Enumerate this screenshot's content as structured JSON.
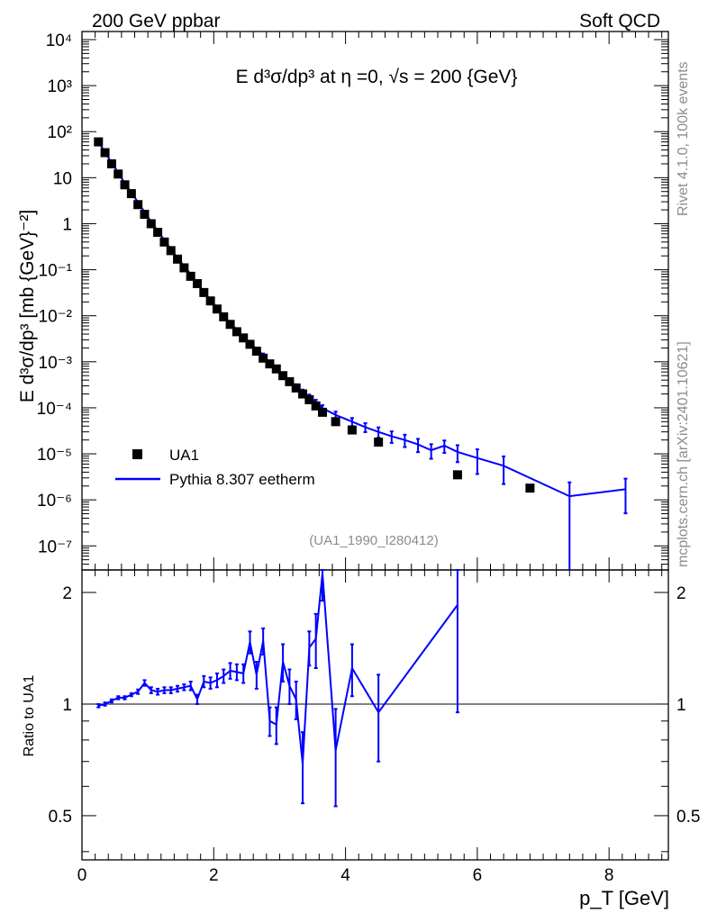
{
  "header": {
    "left": "200 GeV ppbar",
    "right": "Soft QCD"
  },
  "side": {
    "top": "Rivet 4.1.0,  100k events",
    "bottom": "mcplots.cern.ch [arXiv:2401.10621]"
  },
  "chart_data": {
    "type": "scatter",
    "title": "E d³σ/dp³ at η =0, √s = 200 {GeV}",
    "analysis_tag": "(UA1_1990_I280412)",
    "xlabel": "p_T [GeV]",
    "ylabel": "E d³σ/dp³ [mb {GeV}⁻²]",
    "ratio_ylabel": "Ratio to UA1",
    "xlim": [
      0,
      8.9
    ],
    "ylim_log": [
      3e-08,
      15000.0
    ],
    "ratio_ylim_log": [
      0.38,
      2.3
    ],
    "x_ticks": [
      "0",
      "2",
      "4",
      "6",
      "8"
    ],
    "y_ticks": [
      "10⁻⁷",
      "10⁻⁶",
      "10⁻⁵",
      "10⁻⁴",
      "10⁻³",
      "10⁻²",
      "10⁻¹",
      "1",
      "10",
      "10²",
      "10³",
      "10⁴"
    ],
    "ratio_ticks": [
      "0.5",
      "1",
      "2"
    ],
    "legend": [
      {
        "label": "UA1",
        "marker": "square",
        "color": "#000000"
      },
      {
        "label": "Pythia 8.307 eetherm",
        "marker": "line",
        "color": "#0000ff"
      }
    ],
    "data_series": {
      "name": "UA1",
      "x": [
        0.25,
        0.35,
        0.45,
        0.55,
        0.65,
        0.75,
        0.85,
        0.95,
        1.05,
        1.15,
        1.25,
        1.35,
        1.45,
        1.55,
        1.65,
        1.75,
        1.85,
        1.95,
        2.05,
        2.15,
        2.25,
        2.35,
        2.45,
        2.55,
        2.65,
        2.75,
        2.85,
        2.95,
        3.05,
        3.15,
        3.25,
        3.35,
        3.45,
        3.55,
        3.65,
        3.85,
        4.1,
        4.5,
        5.7,
        6.8
      ],
      "y": [
        60,
        35,
        20,
        12,
        7,
        4.5,
        2.6,
        1.6,
        1.0,
        0.65,
        0.4,
        0.26,
        0.17,
        0.11,
        0.072,
        0.05,
        0.032,
        0.021,
        0.014,
        0.0095,
        0.0065,
        0.0045,
        0.0033,
        0.0024,
        0.0017,
        0.0012,
        0.0009,
        0.0007,
        0.0005,
        0.00037,
        0.00027,
        0.0002,
        0.00015,
        0.00011,
        8e-05,
        5e-05,
        3.3e-05,
        1.8e-05,
        3.5e-06,
        1.8e-06
      ]
    },
    "mc_series": {
      "name": "Pythia 8.307 eetherm",
      "x": [
        0.25,
        0.35,
        0.45,
        0.55,
        0.65,
        0.75,
        0.85,
        0.95,
        1.05,
        1.15,
        1.25,
        1.35,
        1.45,
        1.55,
        1.65,
        1.75,
        1.85,
        1.95,
        2.05,
        2.15,
        2.25,
        2.35,
        2.45,
        2.55,
        2.65,
        2.75,
        2.85,
        2.95,
        3.05,
        3.15,
        3.25,
        3.35,
        3.45,
        3.55,
        3.65,
        3.85,
        4.1,
        4.3,
        4.5,
        4.7,
        4.9,
        5.1,
        5.3,
        5.5,
        5.7,
        6.0,
        6.4,
        7.4,
        8.25
      ],
      "y": [
        60,
        36,
        21,
        13,
        7.5,
        4.8,
        2.9,
        1.8,
        1.1,
        0.7,
        0.44,
        0.28,
        0.18,
        0.12,
        0.08,
        0.05,
        0.034,
        0.022,
        0.015,
        0.01,
        0.007,
        0.005,
        0.0034,
        0.0026,
        0.0019,
        0.0014,
        0.00095,
        0.0007,
        0.00051,
        0.00038,
        0.00029,
        0.00022,
        0.00017,
        0.00013,
        9.8e-05,
        7e-05,
        5e-05,
        3.8e-05,
        3e-05,
        2.4e-05,
        2e-05,
        1.6e-05,
        1.2e-05,
        1.5e-05,
        1.1e-05,
        8.1e-06,
        5.5e-06,
        1.2e-06,
        1.7e-06
      ],
      "errors": [
        0.02,
        0.02,
        0.02,
        0.02,
        0.02,
        0.02,
        0.02,
        0.02,
        0.02,
        0.02,
        0.02,
        0.02,
        0.02,
        0.02,
        0.02,
        0.02,
        0.03,
        0.03,
        0.03,
        0.04,
        0.04,
        0.05,
        0.05,
        0.06,
        0.07,
        0.08,
        0.09,
        0.1,
        0.1,
        0.11,
        0.12,
        0.13,
        0.14,
        0.15,
        0.16,
        0.18,
        0.2,
        0.22,
        0.25,
        0.28,
        0.3,
        0.32,
        0.35,
        0.3,
        0.4,
        0.55,
        0.6,
        1.0,
        0.7
      ]
    },
    "ratio": {
      "x": [
        0.25,
        0.35,
        0.45,
        0.55,
        0.65,
        0.75,
        0.85,
        0.95,
        1.05,
        1.15,
        1.25,
        1.35,
        1.45,
        1.55,
        1.65,
        1.75,
        1.85,
        1.95,
        2.05,
        2.15,
        2.25,
        2.35,
        2.45,
        2.55,
        2.65,
        2.75,
        2.85,
        2.95,
        3.05,
        3.15,
        3.25,
        3.35,
        3.45,
        3.55,
        3.65,
        3.85,
        4.1,
        4.5,
        5.7
      ],
      "y": [
        0.99,
        1.0,
        1.02,
        1.04,
        1.04,
        1.06,
        1.08,
        1.14,
        1.09,
        1.08,
        1.09,
        1.09,
        1.1,
        1.11,
        1.12,
        1.03,
        1.15,
        1.14,
        1.16,
        1.19,
        1.23,
        1.22,
        1.21,
        1.47,
        1.2,
        1.48,
        0.9,
        0.88,
        1.3,
        1.12,
        1.03,
        0.69,
        1.42,
        1.5,
        2.25,
        0.75,
        1.25,
        0.95,
        1.85
      ],
      "err": [
        0.01,
        0.01,
        0.01,
        0.01,
        0.01,
        0.01,
        0.015,
        0.02,
        0.02,
        0.02,
        0.02,
        0.02,
        0.02,
        0.02,
        0.03,
        0.03,
        0.04,
        0.04,
        0.05,
        0.05,
        0.06,
        0.06,
        0.07,
        0.1,
        0.1,
        0.12,
        0.08,
        0.1,
        0.15,
        0.12,
        0.12,
        0.15,
        0.15,
        0.25,
        0.35,
        0.22,
        0.2,
        0.25,
        0.9
      ]
    }
  }
}
